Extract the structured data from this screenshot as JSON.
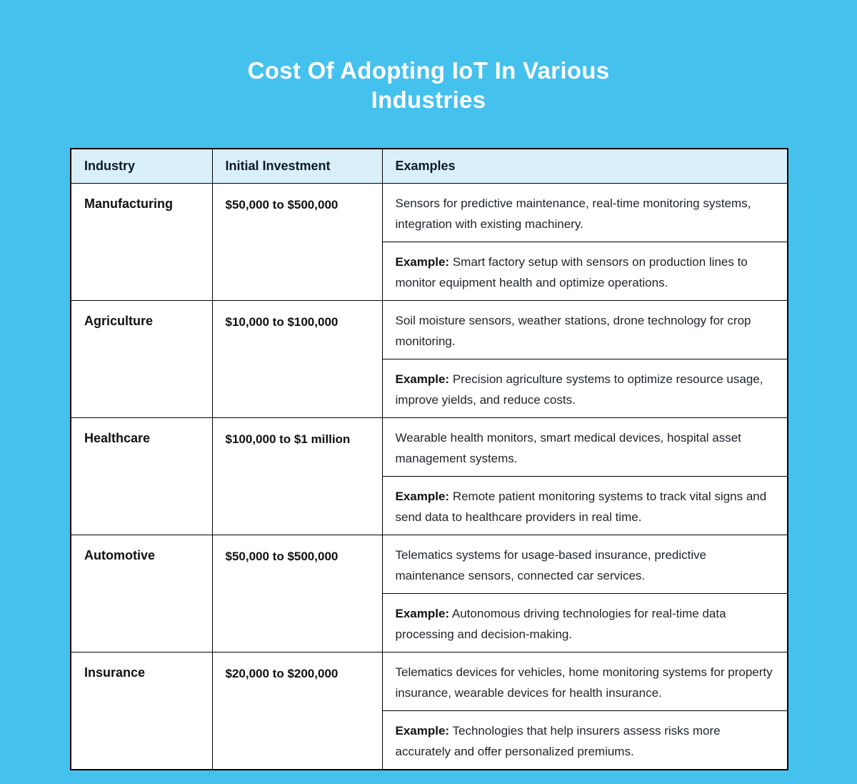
{
  "page": {
    "title": "Cost Of Adopting IoT In Various Industries"
  },
  "colors": {
    "background": "#45C1EE",
    "header_fill": "#D9F0FA",
    "cell_fill": "#FFFFFF",
    "border": "#000000",
    "title_text": "#FFFFFF",
    "body_text": "#1F2328"
  },
  "example_label": "Example:",
  "chart_data": {
    "type": "table",
    "title": "Cost Of Adopting IoT In Various Industries",
    "columns": [
      "Industry",
      "Initial Investment",
      "Examples"
    ],
    "rows": [
      {
        "industry": "Manufacturing",
        "initial_investment": "$50,000 to $500,000",
        "examples": "Sensors for predictive maintenance, real-time monitoring systems, integration with existing machinery.",
        "example_detail": "Smart factory setup with sensors on production lines to monitor equipment health and optimize operations."
      },
      {
        "industry": "Agriculture",
        "initial_investment": "$10,000 to $100,000",
        "examples": "Soil moisture sensors, weather stations, drone technology for crop monitoring.",
        "example_detail": "Precision agriculture systems to optimize resource usage, improve yields, and reduce costs."
      },
      {
        "industry": "Healthcare",
        "initial_investment": "$100,000 to $1 million",
        "examples": "Wearable health monitors, smart medical devices, hospital asset management systems.",
        "example_detail": "Remote patient monitoring systems to track vital signs and send data to healthcare providers in real time."
      },
      {
        "industry": "Automotive",
        "initial_investment": "$50,000 to $500,000",
        "examples": "Telematics systems for usage-based insurance, predictive maintenance sensors, connected car services.",
        "example_detail": "Autonomous driving technologies for real-time data processing and decision-making."
      },
      {
        "industry": "Insurance",
        "initial_investment": "$20,000 to $200,000",
        "examples": "Telematics devices for vehicles, home monitoring systems for property insurance, wearable devices for health insurance.",
        "example_detail": "Technologies that help insurers assess risks more accurately and offer personalized premiums."
      }
    ]
  }
}
